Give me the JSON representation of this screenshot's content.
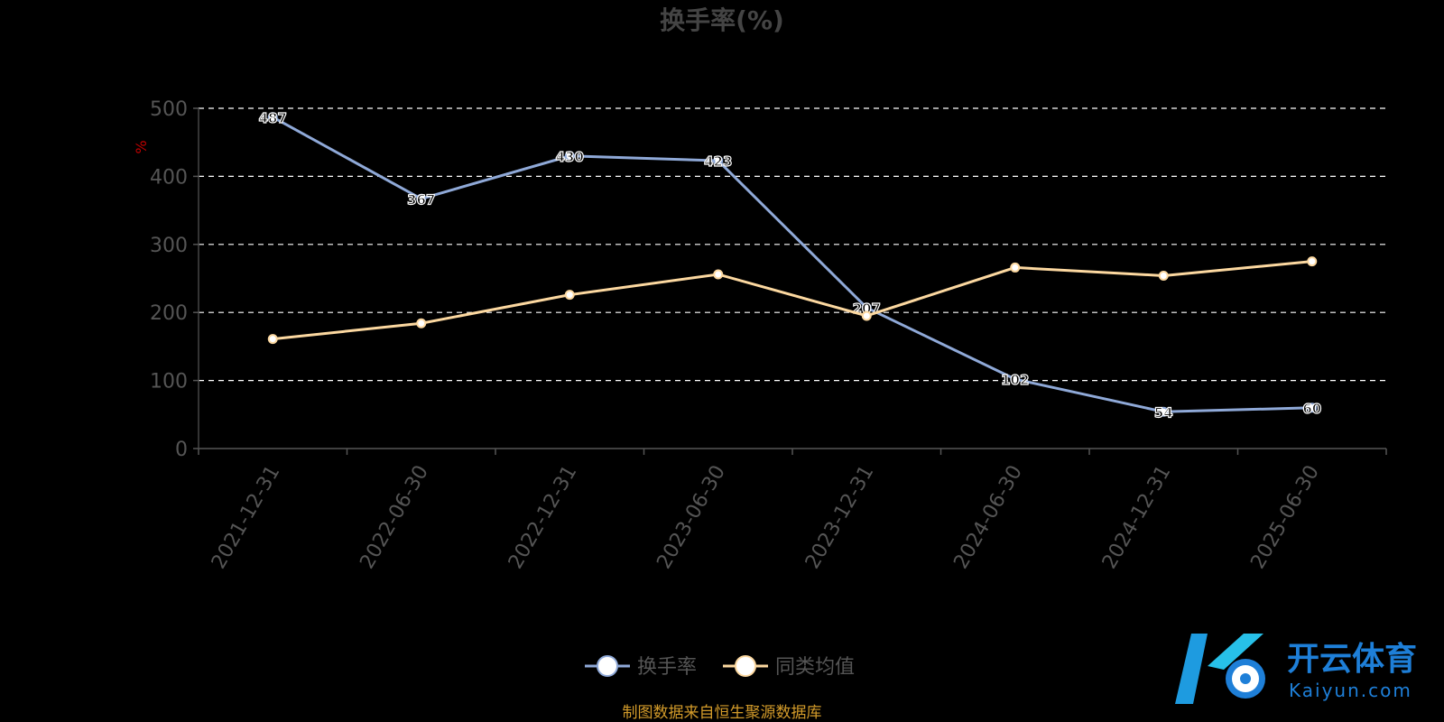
{
  "chart_data": {
    "type": "line",
    "title": "换手率(%)",
    "ylabel": "%",
    "ylim": [
      0,
      500
    ],
    "yticks": [
      0,
      100,
      200,
      300,
      400,
      500
    ],
    "x": [
      "2021-12-31",
      "2022-06-30",
      "2022-12-31",
      "2023-06-30",
      "2023-12-31",
      "2024-06-30",
      "2024-12-31",
      "2025-06-30"
    ],
    "series": [
      {
        "name": "换手率",
        "color": "#8fa9d8",
        "values": [
          487,
          367,
          430,
          423,
          207,
          102,
          54,
          60
        ]
      },
      {
        "name": "同类均值",
        "color": "#fcd8a0",
        "values": [
          161,
          184,
          226,
          256,
          195,
          266,
          254,
          275
        ]
      }
    ],
    "grid": true,
    "legend": "bottom-center"
  },
  "footer": {
    "source": "制图数据来自恒生聚源数据库"
  },
  "logo": {
    "brand": "开云体育",
    "domain": "Kaiyun.com"
  }
}
